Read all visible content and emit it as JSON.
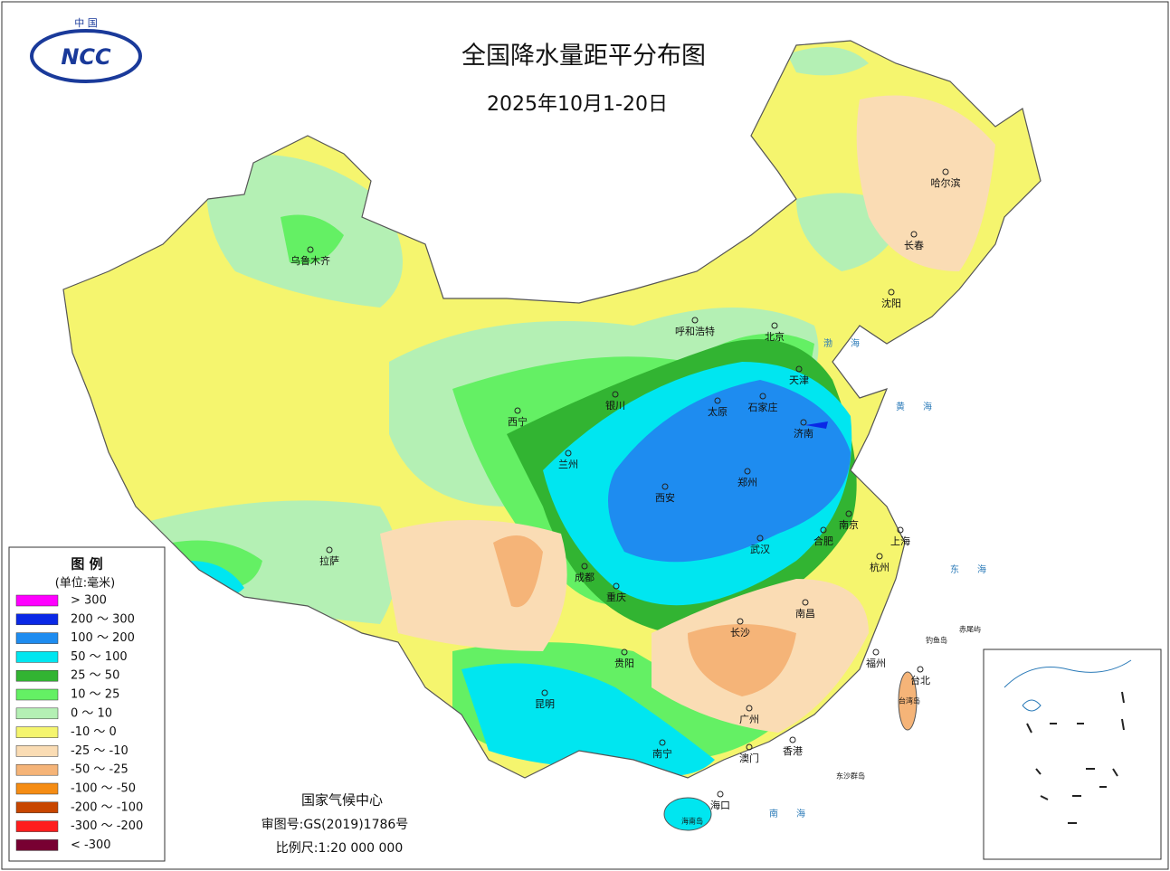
{
  "header": {
    "logo": {
      "top": "中 国",
      "mark": "NCC"
    },
    "title": "全国降水量距平分布图",
    "date": "2025年10月1-20日"
  },
  "legend": {
    "title": "图 例",
    "unit": "(单位:毫米)",
    "items": [
      {
        "label": "> 300",
        "color": "#ff00ff"
      },
      {
        "label": "200 ～ 300",
        "color": "#0a28e6"
      },
      {
        "label": "100 ～ 200",
        "color": "#1e8cf0"
      },
      {
        "label": "50 ～ 100",
        "color": "#00e6f0"
      },
      {
        "label": "25 ～ 50",
        "color": "#32b432"
      },
      {
        "label": "10 ～ 25",
        "color": "#64f064"
      },
      {
        "label": "0 ～ 10",
        "color": "#b4f0b4"
      },
      {
        "label": "-10 ～ 0",
        "color": "#f5f56e"
      },
      {
        "label": "-25 ～ -10",
        "color": "#fadcb4"
      },
      {
        "label": "-50 ～ -25",
        "color": "#f5b478"
      },
      {
        "label": "-100 ～ -50",
        "color": "#f58c14"
      },
      {
        "label": "-200 ～ -100",
        "color": "#c84600"
      },
      {
        "label": "-300 ～ -200",
        "color": "#ff1e1e"
      },
      {
        "label": "< -300",
        "color": "#780032"
      }
    ]
  },
  "cities": [
    "乌鲁木齐",
    "呼和浩特",
    "北京",
    "天津",
    "哈尔滨",
    "长春",
    "沈阳",
    "银川",
    "西宁",
    "兰州",
    "太原",
    "石家庄",
    "济南",
    "郑州",
    "西安",
    "南京",
    "合肥",
    "上海",
    "杭州",
    "武汉",
    "拉萨",
    "成都",
    "重庆",
    "南昌",
    "长沙",
    "贵阳",
    "福州",
    "台北",
    "昆明",
    "广州",
    "南宁",
    "澳门",
    "香港",
    "海口"
  ],
  "regions": [
    "台湾岛",
    "海南岛",
    "东沙群岛",
    "钓鱼岛",
    "赤尾屿"
  ],
  "seas": [
    "渤海",
    "黄海",
    "东海",
    "南海"
  ],
  "footer": {
    "agency": "国家气候中心",
    "approval": "审图号:GS(2019)1786号",
    "scale": "比例尺:1:20 000 000"
  }
}
